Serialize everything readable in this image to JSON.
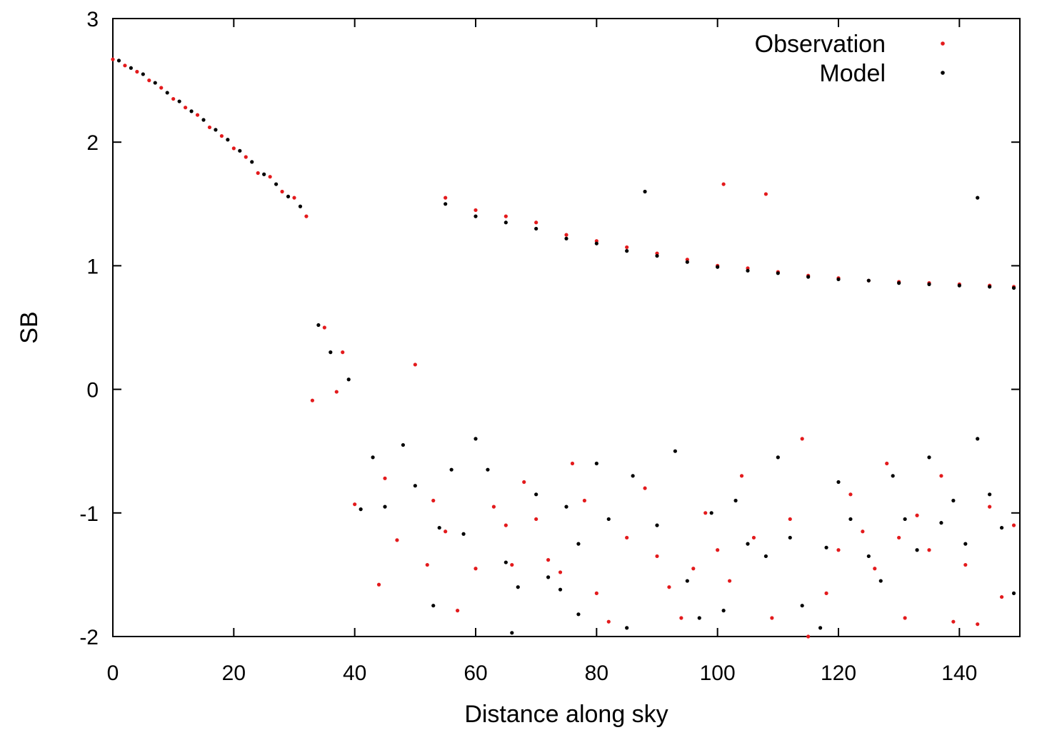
{
  "chart_data": {
    "type": "scatter",
    "title": "",
    "xlabel": "Distance along sky",
    "ylabel": "SB",
    "xlim": [
      0,
      150
    ],
    "ylim": [
      -2,
      3
    ],
    "x_ticks": [
      "0",
      "20",
      "40",
      "60",
      "80",
      "100",
      "120",
      "140"
    ],
    "y_ticks": [
      "-2",
      "-1",
      "0",
      "1",
      "2",
      "3"
    ],
    "grid": false,
    "legend_position": "top-right",
    "series": [
      {
        "name": "Observation",
        "color": "#e31a1c",
        "points": [
          [
            0,
            2.67
          ],
          [
            2,
            2.62
          ],
          [
            4,
            2.57
          ],
          [
            6,
            2.5
          ],
          [
            8,
            2.44
          ],
          [
            10,
            2.35
          ],
          [
            12,
            2.28
          ],
          [
            14,
            2.22
          ],
          [
            16,
            2.12
          ],
          [
            18,
            2.05
          ],
          [
            20,
            1.95
          ],
          [
            22,
            1.88
          ],
          [
            24,
            1.75
          ],
          [
            26,
            1.72
          ],
          [
            28,
            1.6
          ],
          [
            30,
            1.55
          ],
          [
            32,
            1.4
          ],
          [
            33,
            -0.09
          ],
          [
            35,
            0.5
          ],
          [
            37,
            -0.02
          ],
          [
            38,
            0.3
          ],
          [
            40,
            -0.93
          ],
          [
            44,
            -1.58
          ],
          [
            45,
            -0.72
          ],
          [
            47,
            -1.22
          ],
          [
            50,
            0.2
          ],
          [
            52,
            -1.42
          ],
          [
            53,
            -0.9
          ],
          [
            55,
            -1.15
          ],
          [
            57,
            -1.79
          ],
          [
            60,
            -1.45
          ],
          [
            63,
            -0.95
          ],
          [
            65,
            -1.1
          ],
          [
            66,
            -1.42
          ],
          [
            68,
            -0.75
          ],
          [
            70,
            -1.05
          ],
          [
            72,
            -1.38
          ],
          [
            74,
            -1.48
          ],
          [
            76,
            -0.6
          ],
          [
            78,
            -0.9
          ],
          [
            80,
            -1.65
          ],
          [
            82,
            -1.88
          ],
          [
            85,
            -1.2
          ],
          [
            88,
            -0.8
          ],
          [
            90,
            -1.35
          ],
          [
            92,
            -1.6
          ],
          [
            94,
            -1.85
          ],
          [
            96,
            -1.45
          ],
          [
            98,
            -1.0
          ],
          [
            100,
            -1.3
          ],
          [
            101,
            1.66
          ],
          [
            102,
            -1.55
          ],
          [
            104,
            -0.7
          ],
          [
            106,
            -1.2
          ],
          [
            108,
            1.58
          ],
          [
            109,
            -1.85
          ],
          [
            112,
            -1.05
          ],
          [
            114,
            -0.4
          ],
          [
            115,
            -2.0
          ],
          [
            118,
            -1.65
          ],
          [
            120,
            -1.3
          ],
          [
            122,
            -0.85
          ],
          [
            124,
            -1.15
          ],
          [
            126,
            -1.45
          ],
          [
            128,
            -0.6
          ],
          [
            130,
            -1.2
          ],
          [
            131,
            -1.85
          ],
          [
            133,
            -1.02
          ],
          [
            135,
            -1.3
          ],
          [
            137,
            -0.7
          ],
          [
            139,
            -1.88
          ],
          [
            141,
            -1.42
          ],
          [
            143,
            -1.9
          ],
          [
            145,
            -0.95
          ],
          [
            147,
            -1.68
          ],
          [
            149,
            -1.1
          ],
          [
            55,
            1.55
          ],
          [
            60,
            1.45
          ],
          [
            65,
            1.4
          ],
          [
            70,
            1.35
          ],
          [
            75,
            1.25
          ],
          [
            80,
            1.2
          ],
          [
            85,
            1.15
          ],
          [
            90,
            1.1
          ],
          [
            95,
            1.05
          ],
          [
            100,
            1.0
          ],
          [
            105,
            0.98
          ],
          [
            110,
            0.95
          ],
          [
            115,
            0.92
          ],
          [
            120,
            0.9
          ],
          [
            125,
            0.88
          ],
          [
            130,
            0.87
          ],
          [
            135,
            0.86
          ],
          [
            140,
            0.85
          ],
          [
            145,
            0.84
          ],
          [
            149,
            0.83
          ]
        ]
      },
      {
        "name": "Model",
        "color": "#000000",
        "points": [
          [
            1,
            2.66
          ],
          [
            3,
            2.6
          ],
          [
            5,
            2.55
          ],
          [
            7,
            2.48
          ],
          [
            9,
            2.4
          ],
          [
            11,
            2.33
          ],
          [
            13,
            2.25
          ],
          [
            15,
            2.18
          ],
          [
            17,
            2.1
          ],
          [
            19,
            2.02
          ],
          [
            21,
            1.93
          ],
          [
            23,
            1.84
          ],
          [
            25,
            1.74
          ],
          [
            27,
            1.66
          ],
          [
            29,
            1.56
          ],
          [
            31,
            1.48
          ],
          [
            34,
            0.52
          ],
          [
            36,
            0.3
          ],
          [
            39,
            0.08
          ],
          [
            41,
            -0.97
          ],
          [
            43,
            -0.55
          ],
          [
            45,
            -0.95
          ],
          [
            48,
            -0.45
          ],
          [
            50,
            -0.78
          ],
          [
            53,
            -1.75
          ],
          [
            54,
            -1.12
          ],
          [
            56,
            -0.65
          ],
          [
            58,
            -1.17
          ],
          [
            60,
            -0.4
          ],
          [
            62,
            -0.65
          ],
          [
            65,
            -1.4
          ],
          [
            66,
            -1.97
          ],
          [
            67,
            -1.6
          ],
          [
            70,
            -0.85
          ],
          [
            72,
            -1.52
          ],
          [
            74,
            -1.62
          ],
          [
            75,
            -0.95
          ],
          [
            77,
            -1.25
          ],
          [
            77,
            -1.82
          ],
          [
            80,
            -0.6
          ],
          [
            82,
            -1.05
          ],
          [
            85,
            -1.93
          ],
          [
            86,
            -0.7
          ],
          [
            88,
            1.6
          ],
          [
            90,
            -1.1
          ],
          [
            93,
            -0.5
          ],
          [
            95,
            -1.55
          ],
          [
            97,
            -1.85
          ],
          [
            99,
            -1.0
          ],
          [
            101,
            -1.79
          ],
          [
            103,
            -0.9
          ],
          [
            105,
            -1.25
          ],
          [
            108,
            -1.35
          ],
          [
            110,
            -0.55
          ],
          [
            112,
            -1.2
          ],
          [
            114,
            -1.75
          ],
          [
            117,
            -1.93
          ],
          [
            118,
            -1.28
          ],
          [
            120,
            -0.75
          ],
          [
            122,
            -1.05
          ],
          [
            125,
            -1.35
          ],
          [
            127,
            -1.55
          ],
          [
            129,
            -0.7
          ],
          [
            131,
            -1.05
          ],
          [
            133,
            -1.3
          ],
          [
            135,
            -0.55
          ],
          [
            137,
            -1.08
          ],
          [
            139,
            -0.9
          ],
          [
            141,
            -1.25
          ],
          [
            143,
            -0.4
          ],
          [
            145,
            -0.85
          ],
          [
            147,
            -1.12
          ],
          [
            149,
            -1.65
          ],
          [
            143,
            1.55
          ],
          [
            55,
            1.5
          ],
          [
            60,
            1.4
          ],
          [
            65,
            1.35
          ],
          [
            70,
            1.3
          ],
          [
            75,
            1.22
          ],
          [
            80,
            1.18
          ],
          [
            85,
            1.12
          ],
          [
            90,
            1.08
          ],
          [
            95,
            1.03
          ],
          [
            100,
            0.99
          ],
          [
            105,
            0.96
          ],
          [
            110,
            0.94
          ],
          [
            115,
            0.91
          ],
          [
            120,
            0.89
          ],
          [
            125,
            0.88
          ],
          [
            130,
            0.86
          ],
          [
            135,
            0.85
          ],
          [
            140,
            0.84
          ],
          [
            145,
            0.83
          ],
          [
            149,
            0.82
          ]
        ]
      }
    ]
  }
}
